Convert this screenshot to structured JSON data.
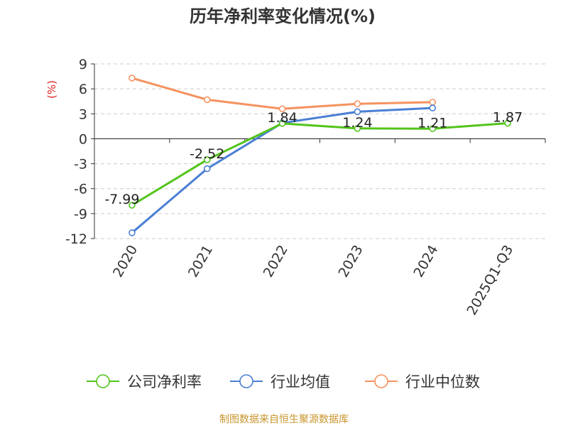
{
  "chart_data": {
    "type": "line",
    "title": "历年净利率变化情况(%)",
    "ylabel": "(%)",
    "categories": [
      "2020",
      "2021",
      "2022",
      "2023",
      "2024",
      "2025Q1-Q3"
    ],
    "yticks": [
      9,
      6,
      3,
      0,
      -3,
      -6,
      -9,
      -12
    ],
    "ylim": [
      -12,
      9
    ],
    "grid": true,
    "legend_position": "bottom",
    "series": [
      {
        "name": "公司净利率",
        "color": "#52c41a",
        "values": [
          -7.99,
          -2.52,
          1.84,
          1.24,
          1.21,
          1.87
        ],
        "labels": [
          "-7.99",
          "-2.52",
          "1.84",
          "1.24",
          "1.21",
          "1.87"
        ]
      },
      {
        "name": "行业均值",
        "color": "#4a7fd4",
        "values": [
          -11.3,
          -3.6,
          1.9,
          3.25,
          3.7,
          null
        ]
      },
      {
        "name": "行业中位数",
        "color": "#f5925e",
        "values": [
          7.3,
          4.7,
          3.6,
          4.2,
          4.4,
          null
        ]
      }
    ]
  },
  "source": "制图数据来自恒生聚源数据库"
}
